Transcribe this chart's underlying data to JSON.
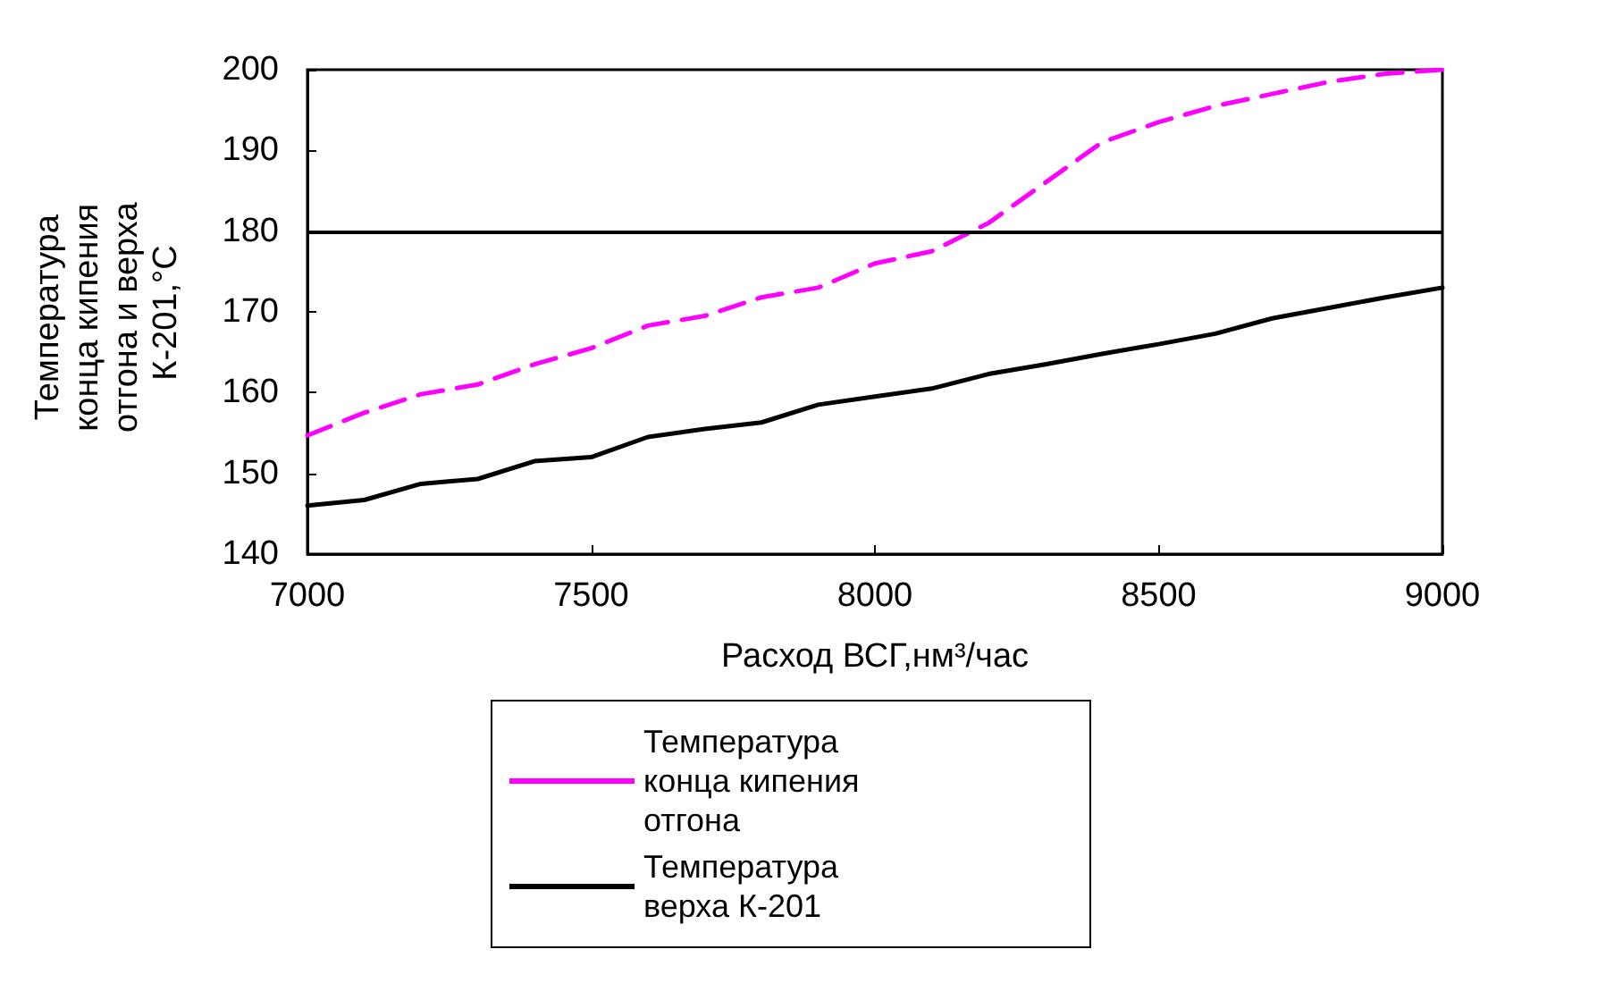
{
  "chart_data": {
    "type": "line",
    "xlabel": "Расход ВСГ,нм³/час",
    "ylabel": "Температура конца кипения отгона и верха К-201,°С",
    "x": [
      7000,
      7100,
      7200,
      7300,
      7400,
      7500,
      7600,
      7700,
      7800,
      7900,
      8000,
      8100,
      8200,
      8300,
      8400,
      8500,
      8600,
      8700,
      8800,
      8900,
      9000
    ],
    "series": [
      {
        "name": "Температура конца кипения отгона",
        "color": "#ff00ff",
        "line_style": "dashed",
        "values": [
          154.7,
          157.5,
          159.8,
          161,
          163.5,
          165.5,
          168.3,
          169.5,
          171.8,
          173,
          176,
          177.5,
          181,
          186,
          191,
          193.5,
          195.5,
          197,
          198.5,
          199.5,
          200
        ]
      },
      {
        "name": "Температура верха К-201",
        "color": "#000000",
        "line_style": "solid",
        "values": [
          146,
          146.7,
          148.7,
          149.3,
          151.5,
          152,
          154.5,
          155.5,
          156.3,
          158.5,
          159.5,
          160.5,
          162.3,
          163.5,
          164.8,
          166,
          167.3,
          169.2,
          170.5,
          171.8,
          173
        ]
      }
    ],
    "xlim": [
      7000,
      9000
    ],
    "xticks": [
      7000,
      7500,
      8000,
      8500,
      9000
    ],
    "ylim": [
      140,
      200
    ],
    "yticks": [
      140,
      150,
      160,
      170,
      180,
      190,
      200
    ],
    "ref_lines": [
      {
        "axis": "y",
        "value": 180,
        "color": "#000000"
      }
    ],
    "grid": false,
    "legend": "bottom",
    "marker": "none"
  }
}
